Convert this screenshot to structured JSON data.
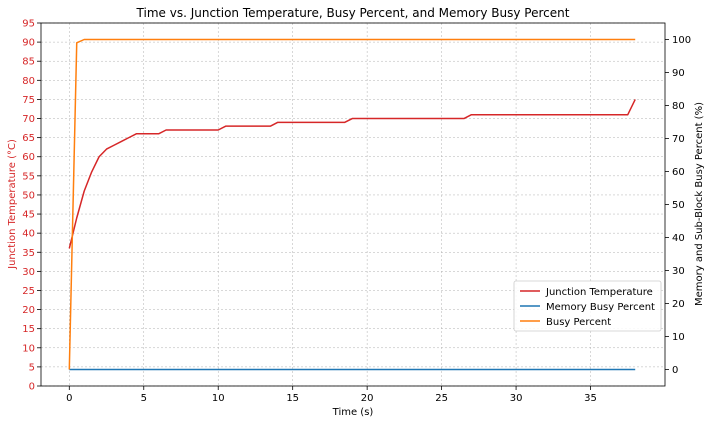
{
  "chart_data": {
    "type": "line",
    "title": "Time vs. Junction Temperature, Busy Percent, and Memory Busy Percent",
    "xlabel": "Time (s)",
    "ylabel_left": "Junction Temperature (°C)",
    "ylabel_right": "Memory and Sub-Block Busy Percent (%)",
    "xlim": [
      -1.9,
      40
    ],
    "ylim_left": [
      0,
      95
    ],
    "ylim_right": [
      -5,
      105
    ],
    "x_ticks": [
      0,
      5,
      10,
      15,
      20,
      25,
      30,
      35
    ],
    "y_left_ticks": [
      0,
      5,
      10,
      15,
      20,
      25,
      30,
      35,
      40,
      45,
      50,
      55,
      60,
      65,
      70,
      75,
      80,
      85,
      90,
      95
    ],
    "y_right_ticks": [
      0,
      10,
      20,
      30,
      40,
      50,
      60,
      70,
      80,
      90,
      100
    ],
    "grid": true,
    "legend_position": "lower-right",
    "series": [
      {
        "name": "Junction Temperature",
        "axis": "left",
        "color": "#d62728",
        "x": [
          0,
          0.5,
          1,
          1.5,
          2,
          2.5,
          3,
          3.5,
          4,
          4.5,
          5,
          5.5,
          6,
          6.5,
          7,
          8,
          9,
          10,
          10.5,
          11,
          12,
          13,
          13.5,
          14,
          15,
          16,
          17,
          18,
          18.5,
          19,
          20,
          21,
          22,
          23,
          24,
          25,
          26,
          26.5,
          27,
          28,
          29,
          30,
          31,
          32,
          33,
          34,
          35,
          36,
          37,
          37.5,
          38
        ],
        "y": [
          36,
          44,
          51,
          56,
          60,
          62,
          63,
          64,
          65,
          66,
          66,
          66,
          66,
          67,
          67,
          67,
          67,
          67,
          68,
          68,
          68,
          68,
          68,
          69,
          69,
          69,
          69,
          69,
          69,
          70,
          70,
          70,
          70,
          70,
          70,
          70,
          70,
          70,
          71,
          71,
          71,
          71,
          71,
          71,
          71,
          71,
          71,
          71,
          71,
          71,
          75
        ]
      },
      {
        "name": "Memory Busy Percent",
        "axis": "right",
        "color": "#1f77b4",
        "x": [
          0,
          38
        ],
        "y": [
          0,
          0
        ]
      },
      {
        "name": "Busy Percent",
        "axis": "right",
        "color": "#ff7f0e",
        "x": [
          0,
          0.5,
          1,
          2,
          38
        ],
        "y": [
          0,
          99,
          100,
          100,
          100
        ]
      }
    ]
  }
}
